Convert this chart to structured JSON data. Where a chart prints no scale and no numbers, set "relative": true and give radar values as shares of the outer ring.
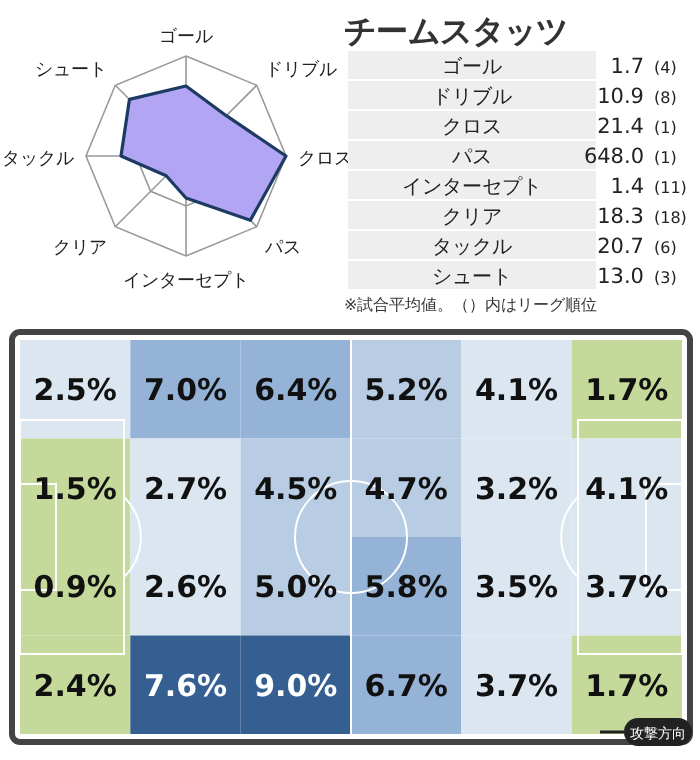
{
  "chart_data": [
    {
      "type": "radar",
      "relative": true,
      "categories": [
        "ゴール",
        "ドリブル",
        "クロス",
        "パス",
        "インターセプト",
        "クリア",
        "タックル",
        "シュート"
      ],
      "series": [
        {
          "color": "#b2a5f3",
          "values": [
            0.7,
            0.57,
            1.0,
            0.91,
            0.42,
            0.28,
            0.65,
            0.8
          ]
        }
      ]
    },
    {
      "type": "other",
      "title": "チームスタッツ",
      "categories": [
        "ゴール",
        "ドリブル",
        "クロス",
        "パス",
        "インターセプト",
        "クリア",
        "タックル",
        "シュート"
      ],
      "value_labels": [
        "1.7",
        "10.9",
        "21.4",
        "648.0",
        "1.4",
        "18.3",
        "20.7",
        "13.0"
      ],
      "annotations": [
        "(4)",
        "(8)",
        "(1)",
        "(1)",
        "(11)",
        "(18)",
        "(6)",
        "(3)",
        "※試合平均値。（）内はリーグ順位"
      ]
    },
    {
      "type": "heatmap",
      "categories": [
        null,
        null,
        null,
        null,
        null,
        null
      ],
      "y_categories": [
        null,
        null,
        null,
        null
      ],
      "cells": [
        [
          2.5,
          7.0,
          6.4,
          5.2,
          4.1,
          1.7
        ],
        [
          1.5,
          2.7,
          4.5,
          4.7,
          3.2,
          4.1
        ],
        [
          0.9,
          2.6,
          5.0,
          5.8,
          3.5,
          3.7
        ],
        [
          2.4,
          7.6,
          9.0,
          6.7,
          3.7,
          1.7
        ]
      ],
      "cell_labels": [
        [
          "2.5%",
          "7.0%",
          "6.4%",
          "5.2%",
          "4.1%",
          "1.7%"
        ],
        [
          "1.5%",
          "2.7%",
          "4.5%",
          "4.7%",
          "3.2%",
          "4.1%"
        ],
        [
          "0.9%",
          "2.6%",
          "5.0%",
          "5.8%",
          "3.5%",
          "3.7%"
        ],
        [
          "2.4%",
          "7.6%",
          "9.0%",
          "6.7%",
          "3.7%",
          "1.7%"
        ]
      ],
      "annotations": [
        "攻撃方向"
      ]
    }
  ]
}
